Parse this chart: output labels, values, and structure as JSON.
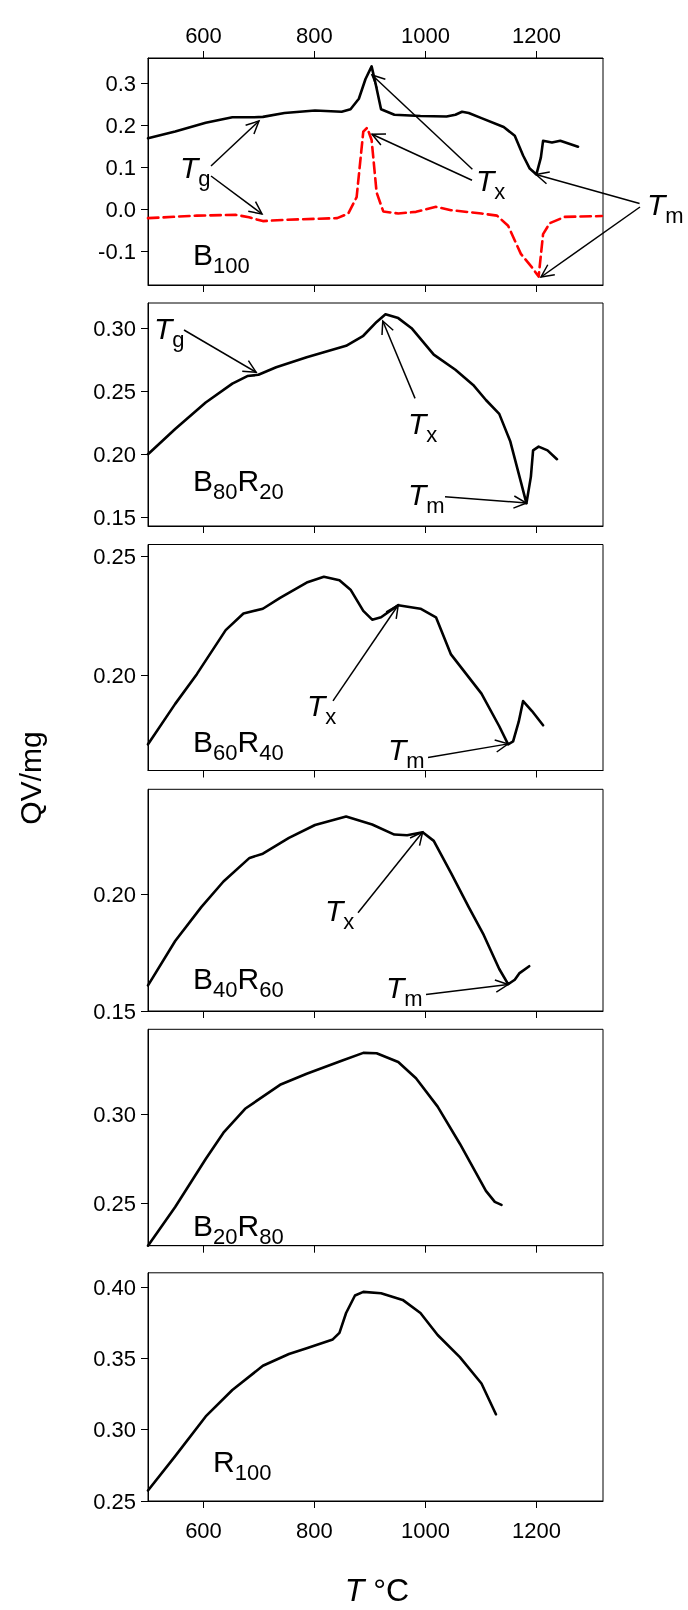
{
  "chart_data": [
    {
      "type": "line",
      "xlim": [
        500,
        1320
      ],
      "xticks": [
        600,
        800,
        1000,
        1200
      ],
      "x2lim": [
        500,
        1320
      ],
      "x2ticks": [
        600,
        800,
        1000,
        1200
      ],
      "ylim": [
        -0.18,
        0.36
      ],
      "yticks": [
        -0.1,
        {
          "value": 0,
          "label": "0.0"
        },
        0.1,
        0.2,
        0.3
      ],
      "tick_labels": "y",
      "series": [
        {
          "color": "#000000",
          "x": [
            500,
            549,
            604,
            652,
            691,
            707,
            746,
            801,
            849,
            865,
            880,
            892,
            903,
            910,
            920,
            944,
            991,
            1038,
            1054,
            1066,
            1078,
            1101,
            1141,
            1161,
            1176,
            1188,
            1200,
            1208,
            1212,
            1228,
            1243,
            1259,
            1275
          ],
          "values": [
            0.169,
            0.185,
            0.206,
            0.219,
            0.219,
            0.22,
            0.229,
            0.235,
            0.232,
            0.238,
            0.263,
            0.31,
            0.34,
            0.3,
            0.238,
            0.225,
            0.222,
            0.221,
            0.225,
            0.232,
            0.229,
            0.217,
            0.196,
            0.175,
            0.128,
            0.097,
            0.083,
            0.123,
            0.163,
            0.159,
            0.163,
            0.156,
            0.149
          ]
        },
        {
          "color": "#ff0000",
          "line_style": "dashed",
          "x": [
            500,
            588,
            658,
            682,
            707,
            746,
            841,
            861,
            876,
            888,
            895,
            903,
            912,
            924,
            951,
            983,
            1019,
            1046,
            1101,
            1129,
            1149,
            1172,
            1192,
            1204,
            1212,
            1224,
            1251,
            1318
          ],
          "values": [
            -0.021,
            -0.015,
            -0.013,
            -0.019,
            -0.028,
            -0.025,
            -0.021,
            -0.01,
            0.029,
            0.185,
            0.194,
            0.165,
            0.04,
            -0.005,
            -0.01,
            -0.006,
            0.006,
            -0.002,
            -0.01,
            -0.015,
            -0.039,
            -0.106,
            -0.138,
            -0.16,
            -0.059,
            -0.033,
            -0.018,
            -0.016
          ]
        }
      ],
      "annotations": [
        {
          "text": "T$_{g}$",
          "x": 700,
          "y": 0.21
        },
        {
          "text": "T$_{x}$",
          "x": 903,
          "y": 0.32
        },
        {
          "text": "T$_{m}$",
          "x": 1200,
          "y": 0.084
        },
        "B$_{100}$"
      ]
    },
    {
      "type": "line",
      "xlim": [
        500,
        1320
      ],
      "xticks": [
        600,
        800,
        1000,
        1200
      ],
      "ylim": [
        0.143,
        0.32
      ],
      "yticks": [
        0.15,
        {
          "value": 0.2,
          "label": "0.20"
        },
        0.25,
        {
          "value": 0.3,
          "label": "0.30"
        }
      ],
      "tick_labels": "y",
      "series": [
        {
          "color": "#000000",
          "x": [
            500,
            549,
            604,
            652,
            679,
            699,
            731,
            786,
            857,
            888,
            912,
            928,
            951,
            975,
            1015,
            1054,
            1086,
            1109,
            1133,
            1153,
            1172,
            1182,
            1190,
            1194,
            1204,
            1220,
            1237
          ],
          "values": [
            0.2,
            0.22,
            0.241,
            0.256,
            0.262,
            0.263,
            0.269,
            0.277,
            0.286,
            0.294,
            0.305,
            0.311,
            0.308,
            0.3,
            0.279,
            0.267,
            0.255,
            0.243,
            0.232,
            0.21,
            0.178,
            0.161,
            0.182,
            0.203,
            0.206,
            0.203,
            0.196
          ]
        }
      ],
      "annotations": [
        {
          "text": "T$_{g}$",
          "x": 695,
          "y": 0.265
        },
        {
          "text": "T$_{x}$",
          "x": 923,
          "y": 0.306
        },
        {
          "text": "T$_{m}$",
          "x": 1182,
          "y": 0.161
        },
        "B$_{80}$R$_{20}$"
      ]
    },
    {
      "type": "line",
      "xlim": [
        500,
        1320
      ],
      "xticks": [
        600,
        800,
        1000,
        1200
      ],
      "ylim": [
        0.16,
        0.255
      ],
      "yticks": [
        {
          "value": 0.2,
          "label": "0.20"
        },
        0.25
      ],
      "tick_labels": "y",
      "series": [
        {
          "color": "#000000",
          "x": [
            500,
            549,
            588,
            640,
            672,
            707,
            738,
            786,
            817,
            845,
            865,
            888,
            904,
            920,
            951,
            991,
            1019,
            1046,
            1101,
            1133,
            1149,
            1158,
            1168,
            1176,
            1192,
            1212
          ],
          "values": [
            0.171,
            0.188,
            0.2005,
            0.219,
            0.226,
            0.228,
            0.2326,
            0.239,
            0.2414,
            0.24,
            0.236,
            0.2271,
            0.2234,
            0.2244,
            0.2295,
            0.228,
            0.2244,
            0.2088,
            0.1923,
            0.1786,
            0.171,
            0.1722,
            0.1804,
            0.1892,
            0.185,
            0.179
          ]
        }
      ],
      "annotations": [
        {
          "text": "T$_{x}$",
          "x": 951,
          "y": 0.2295
        },
        {
          "text": "T$_{m}$",
          "x": 1149,
          "y": 0.171
        },
        "B$_{60}$R$_{40}$"
      ]
    },
    {
      "type": "line",
      "xlim": [
        500,
        1320
      ],
      "xticks": [
        600,
        800,
        1000,
        1200
      ],
      "ylim": [
        0.15,
        0.245
      ],
      "yticks": [
        0.15,
        {
          "value": 0.2,
          "label": "0.20"
        }
      ],
      "tick_labels": "y",
      "ylabel": "QV/mg",
      "series": [
        {
          "color": "#000000",
          "x": [
            500,
            549,
            596,
            636,
            683,
            707,
            754,
            801,
            857,
            904,
            944,
            967,
            995,
            1015,
            1046,
            1078,
            1105,
            1133,
            1149,
            1161,
            1169,
            1187
          ],
          "values": [
            0.161,
            0.18,
            0.1945,
            0.2055,
            0.2156,
            0.2174,
            0.2242,
            0.2297,
            0.2333,
            0.2299,
            0.2256,
            0.2253,
            0.2266,
            0.2229,
            0.2092,
            0.1945,
            0.1826,
            0.168,
            0.1615,
            0.1634,
            0.1661,
            0.1692
          ]
        }
      ],
      "annotations": [
        {
          "text": "T$_{x}$",
          "x": 995,
          "y": 0.2266
        },
        {
          "text": "T$_{m}$",
          "x": 1149,
          "y": 0.1615
        },
        "B$_{40}$R$_{60}$"
      ]
    },
    {
      "type": "line",
      "xlim": [
        500,
        1320
      ],
      "xticks": [
        600,
        800,
        1000,
        1200
      ],
      "ylim": [
        0.226,
        0.348
      ],
      "yticks": [
        0.25,
        {
          "value": 0.3,
          "label": "0.30"
        }
      ],
      "tick_labels": "y",
      "series": [
        {
          "color": "#000000",
          "x": [
            500,
            549,
            604,
            636,
            675,
            738,
            786,
            849,
            888,
            912,
            951,
            983,
            1022,
            1062,
            1109,
            1125,
            1137
          ],
          "values": [
            0.226,
            0.2478,
            0.2749,
            0.2897,
            0.3032,
            0.3167,
            0.3229,
            0.3303,
            0.3347,
            0.3345,
            0.3296,
            0.3204,
            0.3044,
            0.2835,
            0.2569,
            0.2507,
            0.249
          ]
        }
      ],
      "annotations": [
        "B$_{20}$R$_{80}$"
      ]
    },
    {
      "type": "line",
      "xlim": [
        500,
        1320
      ],
      "xticks": [
        600,
        800,
        1000,
        1200
      ],
      "ylim": [
        0.25,
        0.41
      ],
      "yticks": [
        0.25,
        {
          "value": 0.3,
          "label": "0.30"
        },
        0.35,
        {
          "value": 0.4,
          "label": "0.40"
        }
      ],
      "xlabel": "T °C",
      "series": [
        {
          "color": "#000000",
          "x": [
            500,
            549,
            604,
            652,
            707,
            754,
            786,
            833,
            845,
            857,
            873,
            888,
            920,
            959,
            991,
            1022,
            1062,
            1101,
            1127
          ],
          "values": [
            0.2574,
            0.2815,
            0.3093,
            0.3278,
            0.3448,
            0.3531,
            0.3571,
            0.3633,
            0.3679,
            0.3818,
            0.3941,
            0.3966,
            0.3957,
            0.391,
            0.3818,
            0.3664,
            0.3509,
            0.3324,
            0.3108
          ]
        }
      ],
      "annotations": [
        "R$_{100}$"
      ]
    }
  ]
}
